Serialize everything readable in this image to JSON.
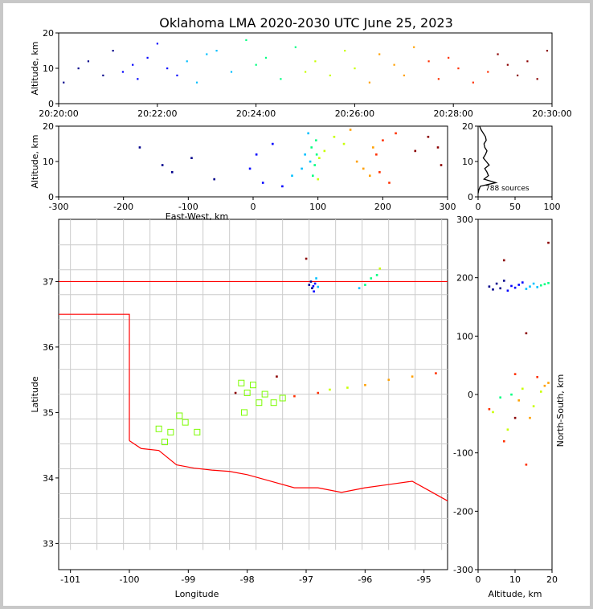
{
  "title": "Oklahoma LMA 2020-2030 UTC June 25, 2023",
  "source_count_label": "788 sources",
  "chart_data": [
    {
      "panel": "altitude-time",
      "type": "scatter",
      "ylabel": "Altitude, km",
      "ylim": [
        0,
        20
      ],
      "y_ticks": [
        "0",
        "10",
        "20"
      ],
      "x_ticks": [
        "20:20:00",
        "20:22:00",
        "20:24:00",
        "20:26:00",
        "20:28:00",
        "20:30:00"
      ],
      "xlim_minutes": [
        0,
        10
      ],
      "color_by": "time",
      "colormap": [
        "#00008b",
        "#0000ff",
        "#00bfff",
        "#00ff80",
        "#c8ff00",
        "#ffa000",
        "#ff3000",
        "#8b0000"
      ],
      "series": [
        {
          "x_minutes": [
            0.1,
            0.4,
            0.6,
            0.9,
            1.1,
            1.3,
            1.5,
            1.6,
            1.8,
            2.0,
            2.2,
            2.4,
            2.6,
            2.8,
            3.0,
            3.2,
            3.5,
            3.8,
            4.0,
            4.2,
            4.5,
            4.8,
            5.0,
            5.2,
            5.5,
            5.8,
            6.0,
            6.3,
            6.5,
            6.8,
            7.0,
            7.2,
            7.5,
            7.7,
            7.9,
            8.1,
            8.4,
            8.7,
            8.9,
            9.1,
            9.3,
            9.5,
            9.7,
            9.9
          ],
          "y": [
            6,
            10,
            12,
            8,
            15,
            9,
            11,
            7,
            13,
            17,
            10,
            8,
            12,
            6,
            14,
            15,
            9,
            18,
            11,
            13,
            7,
            16,
            9,
            12,
            8,
            15,
            10,
            6,
            14,
            11,
            8,
            16,
            12,
            7,
            13,
            10,
            6,
            9,
            14,
            11,
            8,
            12,
            7,
            15
          ]
        }
      ]
    },
    {
      "panel": "altitude-east-west",
      "type": "scatter",
      "xlabel": "East-West, km",
      "ylabel": "Altitude, km",
      "xlim": [
        -300,
        300
      ],
      "ylim": [
        0,
        20
      ],
      "x_ticks": [
        "-300",
        "-200",
        "-100",
        "0",
        "100",
        "200",
        "300"
      ],
      "y_ticks": [
        "0",
        "10",
        "20"
      ],
      "series": [
        {
          "x": [
            -175,
            -140,
            -125,
            -95,
            -60,
            -5,
            5,
            15,
            30,
            45,
            60,
            75,
            80,
            85,
            88,
            90,
            92,
            95,
            97,
            98,
            100,
            102,
            110,
            125,
            140,
            150,
            160,
            170,
            180,
            185,
            190,
            195,
            200,
            210,
            220,
            250,
            270,
            285,
            290
          ],
          "y": [
            14,
            9,
            7,
            11,
            5,
            8,
            12,
            4,
            15,
            3,
            6,
            8,
            12,
            18,
            10,
            14,
            6,
            9,
            16,
            12,
            5,
            11,
            13,
            17,
            15,
            19,
            10,
            8,
            6,
            14,
            12,
            7,
            16,
            4,
            18,
            13,
            17,
            14,
            9
          ]
        }
      ]
    },
    {
      "panel": "altitude-histogram",
      "type": "line",
      "xlim": [
        0,
        100
      ],
      "ylim": [
        0,
        20
      ],
      "x_ticks": [
        "0",
        "50",
        "100"
      ],
      "y_ticks": [
        "0",
        "10",
        "20"
      ],
      "bins_km": [
        1,
        2,
        3,
        4,
        5,
        6,
        7,
        8,
        9,
        10,
        11,
        12,
        13,
        14,
        15,
        16,
        17,
        18,
        19,
        20
      ],
      "counts": [
        0,
        1,
        3,
        24,
        8,
        14,
        12,
        9,
        15,
        11,
        7,
        10,
        12,
        9,
        8,
        11,
        10,
        7,
        4,
        2
      ]
    },
    {
      "panel": "plan-view",
      "type": "scatter",
      "xlabel": "Longitude",
      "ylabel": "Latitude",
      "xlim": [
        -101.2,
        -94.6
      ],
      "ylim": [
        32.6,
        37.95
      ],
      "x_ticks": [
        "-101",
        "-100",
        "-99",
        "-98",
        "-97",
        "-96",
        "-95"
      ],
      "y_ticks": [
        "33",
        "34",
        "35",
        "36",
        "37"
      ],
      "stations": {
        "lon": [
          -98.1,
          -98.0,
          -97.9,
          -97.8,
          -97.7,
          -97.55,
          -97.4,
          -98.05,
          -99.5,
          -99.3,
          -99.15,
          -99.05,
          -98.85,
          -99.4
        ],
        "lat": [
          35.45,
          35.3,
          35.42,
          35.15,
          35.28,
          35.15,
          35.22,
          35.0,
          34.75,
          34.7,
          34.95,
          34.85,
          34.7,
          34.55
        ]
      },
      "series": [
        {
          "lon": [
            -96.95,
            -96.92,
            -96.9,
            -96.88,
            -96.85,
            -96.87,
            -96.83,
            -96.8,
            -96.1,
            -96.0,
            -95.9,
            -95.8,
            -95.75,
            -96.6,
            -96.3,
            -96.0,
            -95.6,
            -95.2,
            -94.8,
            -97.2,
            -96.8,
            -97.5,
            -98.2,
            -97.0
          ],
          "lat": [
            36.95,
            37.0,
            36.9,
            36.93,
            36.97,
            36.85,
            37.05,
            36.92,
            36.9,
            36.95,
            37.05,
            37.1,
            37.2,
            35.35,
            35.38,
            35.42,
            35.5,
            35.55,
            35.6,
            35.25,
            35.3,
            35.55,
            35.3,
            37.35
          ]
        }
      ]
    },
    {
      "panel": "altitude-north-south",
      "type": "scatter",
      "xlabel": "Altitude, km",
      "ylabel": "North-South, km",
      "xlim": [
        0,
        20
      ],
      "ylim": [
        -300,
        300
      ],
      "x_ticks": [
        "0",
        "10",
        "20"
      ],
      "y_ticks": [
        "-300",
        "-200",
        "-100",
        "0",
        "100",
        "200",
        "300"
      ],
      "series": [
        {
          "alt": [
            3,
            4,
            5,
            6,
            7,
            8,
            9,
            10,
            11,
            12,
            13,
            14,
            15,
            16,
            17,
            18,
            19,
            6,
            9,
            12,
            15,
            17,
            4,
            8,
            11,
            14,
            18,
            19,
            3,
            7,
            10,
            13,
            16,
            7,
            13,
            19,
            10
          ],
          "ns": [
            185,
            180,
            190,
            182,
            195,
            178,
            186,
            183,
            188,
            192,
            181,
            185,
            190,
            184,
            187,
            189,
            191,
            -5,
            0,
            10,
            -20,
            5,
            -30,
            -60,
            -10,
            -40,
            15,
            20,
            -25,
            -80,
            35,
            -120,
            30,
            230,
            105,
            260,
            -40
          ]
        }
      ]
    }
  ],
  "map": {
    "state_border_color": "#ff0000",
    "county_line_color": "#cccccc",
    "station_color": "#7cfc00"
  }
}
